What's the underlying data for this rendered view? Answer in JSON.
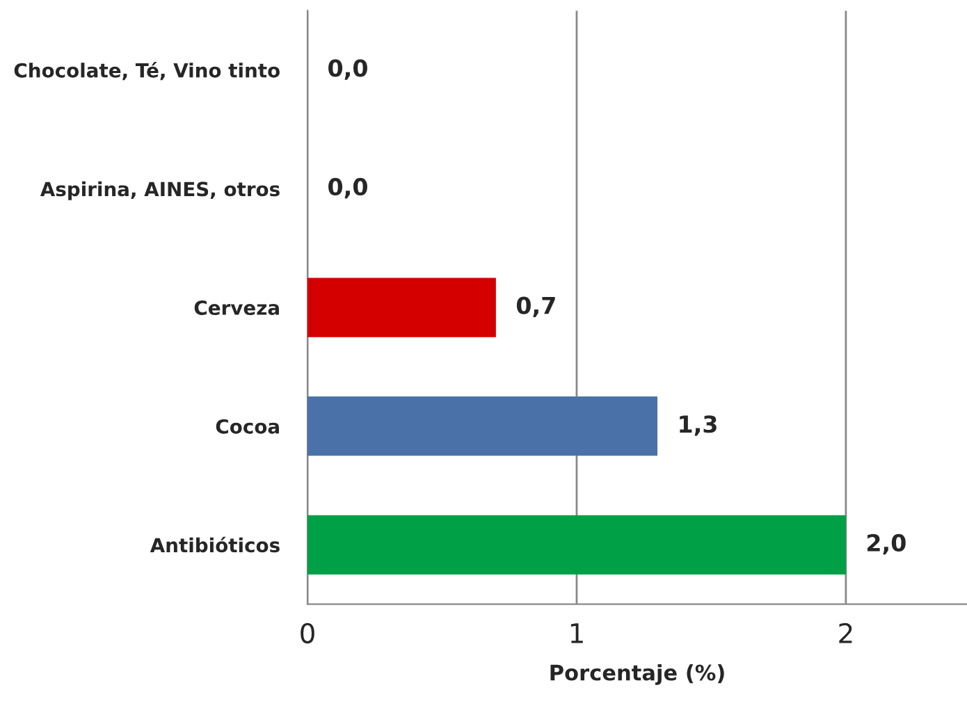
{
  "chart_data": {
    "type": "bar",
    "orientation": "horizontal",
    "categories": [
      "Chocolate, Té, Vino tinto",
      "Aspirina, AINES, otros",
      "Cerveza",
      "Cocoa",
      "Antibióticos"
    ],
    "values": [
      0.0,
      0.0,
      0.7,
      1.3,
      2.0
    ],
    "value_labels": [
      "0,0",
      "0,0",
      "0,7",
      "1,3",
      "2,0"
    ],
    "colors": [
      null,
      null,
      "#d40000",
      "#4a72a8",
      "#00a046"
    ],
    "xlabel": "Porcentaje (%)",
    "xlim": [
      0,
      2.45
    ],
    "xticks": [
      0,
      1,
      2
    ],
    "grid": "x",
    "legend": false
  }
}
